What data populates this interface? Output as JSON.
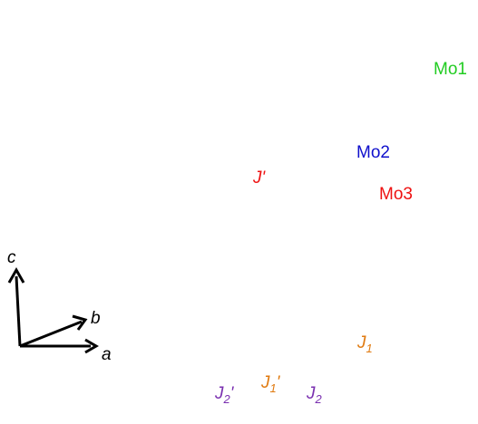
{
  "legend": {
    "mo1": "Mo1",
    "mo2": "Mo2",
    "mo3": "Mo3"
  },
  "couplings": {
    "jp": {
      "symbol": "J",
      "suffix": "'"
    },
    "j1": {
      "symbol": "J",
      "sub": "1"
    },
    "j1p": {
      "symbol": "J",
      "sub": "1",
      "suffix": "'"
    },
    "j2": {
      "symbol": "J",
      "sub": "2"
    },
    "j2p": {
      "symbol": "J",
      "sub": "2",
      "suffix": "'"
    }
  },
  "axes": {
    "c": "c",
    "b": "b",
    "a": "a"
  }
}
